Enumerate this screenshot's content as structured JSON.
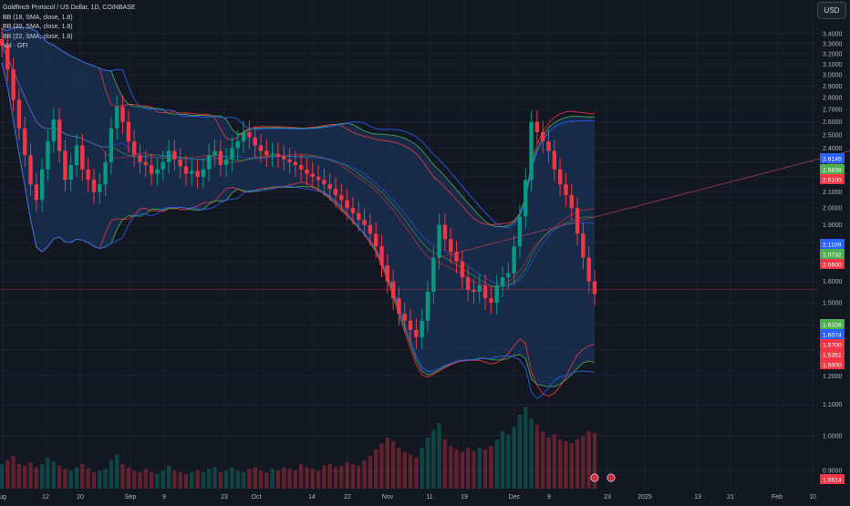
{
  "header": {
    "legend": [
      "Goldfinch Protocol / US Dollar, 1D, COINBASE",
      "BB (18, SMA, close, 1.8)",
      "BB (20, SMA, close, 1.8)",
      "BB (22, SMA, close, 1.8)",
      "Vol · GFI"
    ],
    "currency_button": "USD"
  },
  "chart_data": {
    "type": "candlestick",
    "price_axis": {
      "ticks": [
        "3.4000",
        "3.3000",
        "3.2000",
        "3.1000",
        "3.0000",
        "2.9000",
        "2.8000",
        "2.7000",
        "2.6000",
        "2.5000",
        "2.4000",
        "2.3000",
        "2.2000",
        "2.1000",
        "2.0000",
        "1.9000",
        "1.8000",
        "1.7000",
        "1.6000",
        "1.5000",
        "1.4000",
        "1.3000",
        "1.2000",
        "1.1000",
        "1.0000",
        "0.9000"
      ],
      "scale": "log"
    },
    "time_axis": {
      "ticks": [
        "ug",
        "12",
        "20",
        "Sep",
        "9",
        "23",
        "Oct",
        "14",
        "22",
        "Nov",
        "11",
        "19",
        "Dec",
        "9",
        "23",
        "2025",
        "13",
        "21",
        "Feb",
        "10"
      ]
    },
    "price_labels": [
      {
        "value": "2.6145",
        "color": "#2962ff"
      },
      {
        "value": "2.5838",
        "color": "#4caf50"
      },
      {
        "value": "2.5100",
        "color": "#f23645"
      },
      {
        "value": "2.1109",
        "color": "#2962ff"
      },
      {
        "value": "2.0732",
        "color": "#4caf50"
      },
      {
        "value": "2.0500",
        "color": "#f23645"
      },
      {
        "value": "1.6326",
        "color": "#4caf50"
      },
      {
        "value": "1.6074",
        "color": "#2962ff"
      },
      {
        "value": "1.5700",
        "color": "#f23645"
      },
      {
        "value": "1.5351",
        "color": "#f23645"
      },
      {
        "value": "1.5000",
        "color": "#f23645"
      },
      {
        "value": "1.0514",
        "color": "#f23645"
      }
    ],
    "closes": [
      3.28,
      3.05,
      2.78,
      2.55,
      2.35,
      2.15,
      2.05,
      2.25,
      2.45,
      2.62,
      2.38,
      2.18,
      2.28,
      2.42,
      2.25,
      2.18,
      2.1,
      2.15,
      2.3,
      2.55,
      2.72,
      2.6,
      2.45,
      2.35,
      2.3,
      2.28,
      2.22,
      2.25,
      2.3,
      2.38,
      2.32,
      2.27,
      2.22,
      2.24,
      2.2,
      2.25,
      2.35,
      2.38,
      2.28,
      2.32,
      2.4,
      2.45,
      2.52,
      2.48,
      2.42,
      2.38,
      2.35,
      2.36,
      2.34,
      2.32,
      2.3,
      2.28,
      2.25,
      2.22,
      2.2,
      2.18,
      2.15,
      2.12,
      2.08,
      2.05,
      2.0,
      1.97,
      1.93,
      1.9,
      1.85,
      1.78,
      1.68,
      1.6,
      1.52,
      1.45,
      1.42,
      1.38,
      1.35,
      1.42,
      1.55,
      1.72,
      1.9,
      1.82,
      1.75,
      1.7,
      1.62,
      1.56,
      1.55,
      1.58,
      1.52,
      1.5,
      1.58,
      1.62,
      1.64,
      1.78,
      1.95,
      2.18,
      2.6,
      2.52,
      2.45,
      2.38,
      2.25,
      2.15,
      2.08,
      2.0,
      1.85,
      1.72,
      1.6,
      1.54
    ],
    "volumes": [
      0.3,
      0.35,
      0.4,
      0.3,
      0.28,
      0.32,
      0.26,
      0.3,
      0.38,
      0.33,
      0.28,
      0.24,
      0.22,
      0.26,
      0.3,
      0.25,
      0.2,
      0.22,
      0.24,
      0.35,
      0.42,
      0.3,
      0.26,
      0.22,
      0.2,
      0.24,
      0.2,
      0.18,
      0.22,
      0.28,
      0.22,
      0.2,
      0.18,
      0.2,
      0.22,
      0.2,
      0.24,
      0.26,
      0.2,
      0.22,
      0.26,
      0.22,
      0.2,
      0.24,
      0.26,
      0.22,
      0.2,
      0.24,
      0.22,
      0.26,
      0.24,
      0.22,
      0.3,
      0.26,
      0.24,
      0.22,
      0.28,
      0.3,
      0.26,
      0.28,
      0.32,
      0.3,
      0.28,
      0.34,
      0.4,
      0.48,
      0.55,
      0.62,
      0.58,
      0.5,
      0.45,
      0.42,
      0.38,
      0.5,
      0.62,
      0.72,
      0.8,
      0.6,
      0.52,
      0.48,
      0.45,
      0.5,
      0.46,
      0.5,
      0.48,
      0.52,
      0.6,
      0.7,
      0.66,
      0.75,
      0.9,
      1.0,
      0.85,
      0.78,
      0.7,
      0.62,
      0.66,
      0.6,
      0.58,
      0.55,
      0.6,
      0.64,
      0.7,
      0.68
    ],
    "series": [
      {
        "name": "BB (18, SMA, close, 1.8)",
        "color": "#f23645"
      },
      {
        "name": "BB (20, SMA, close, 1.8)",
        "color": "#4caf50"
      },
      {
        "name": "BB (22, SMA, close, 1.8)",
        "color": "#2962ff"
      }
    ],
    "colors": {
      "up": "#089981",
      "down": "#f23645",
      "band_fill": "#1c3a66",
      "grid": "#1e2230",
      "background": "#131722"
    }
  }
}
